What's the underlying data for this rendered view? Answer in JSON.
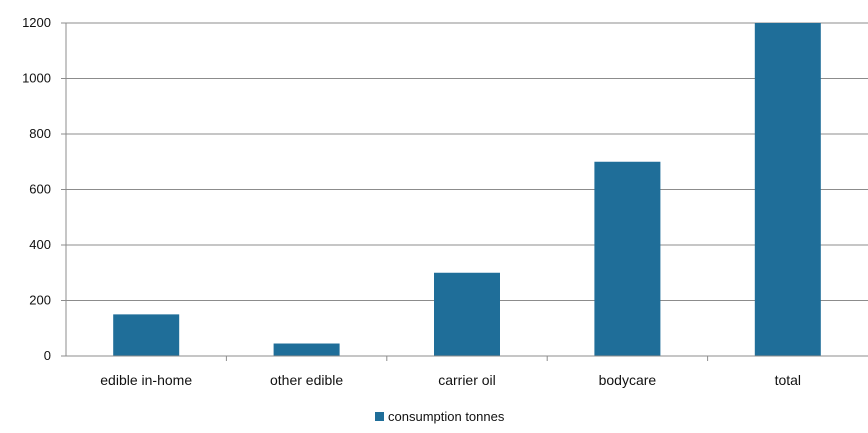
{
  "chart_data": {
    "type": "bar",
    "title": "",
    "xlabel": "",
    "ylabel": "",
    "categories": [
      "edible in-home",
      "other edible",
      "carrier oil",
      "bodycare",
      "total"
    ],
    "series": [
      {
        "name": "consumption tonnes",
        "color": "#1f6e99",
        "values": [
          150,
          45,
          300,
          700,
          1200
        ]
      }
    ],
    "ylim": [
      0,
      1200
    ],
    "yticks": [
      "0",
      "200",
      "400",
      "600",
      "800",
      "1000",
      "1200"
    ],
    "grid": true,
    "legend_position": "bottom-center"
  }
}
